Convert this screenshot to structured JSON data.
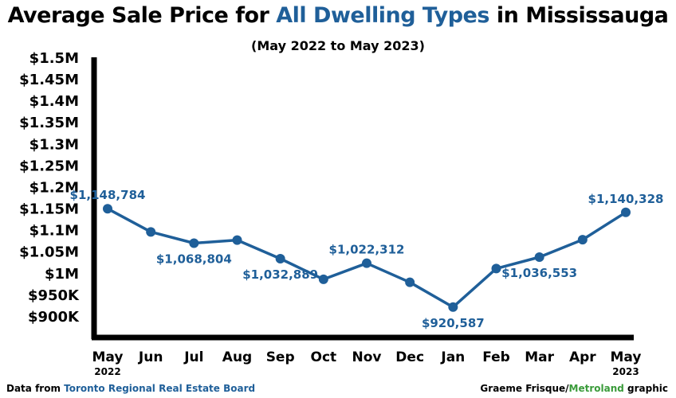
{
  "title": {
    "prefix": "Average Sale Price for ",
    "highlight": "All Dwelling Types",
    "suffix": " in Mississauga",
    "highlight_color": "#1f5f99"
  },
  "subtitle": "(May 2022 to May 2023)",
  "footer": {
    "source_prefix": "Data from ",
    "source_name": "Toronto Regional Real Estate Board",
    "credit_name": "Graeme Frisque/",
    "credit_brand": "Metroland",
    "credit_suffix": " graphic",
    "brand_color": "#3a9b3a"
  },
  "chart_data": {
    "type": "line",
    "title": "Average Sale Price for All Dwelling Types in Mississauga",
    "subtitle": "(May 2022 to May 2023)",
    "categories": [
      "May",
      "Jun",
      "Jul",
      "Aug",
      "Sep",
      "Oct",
      "Nov",
      "Dec",
      "Jan",
      "Feb",
      "Mar",
      "Apr",
      "May"
    ],
    "category_years": [
      "2022",
      "",
      "",
      "",
      "",
      "",
      "",
      "",
      "",
      "",
      "",
      "",
      "2023"
    ],
    "series": [
      {
        "name": "Average Sale Price",
        "color": "#1f5f99",
        "values": [
          1148784,
          1095000,
          1068804,
          1076000,
          1032889,
          985000,
          1022312,
          978000,
          920587,
          1010000,
          1036553,
          1077000,
          1140328
        ]
      }
    ],
    "data_labels": [
      {
        "index": 0,
        "text": "$1,148,784",
        "position": "above"
      },
      {
        "index": 2,
        "text": "$1,068,804",
        "position": "below"
      },
      {
        "index": 4,
        "text": "$1,032,889",
        "position": "below"
      },
      {
        "index": 6,
        "text": "$1,022,312",
        "position": "above"
      },
      {
        "index": 8,
        "text": "$920,587",
        "position": "below"
      },
      {
        "index": 10,
        "text": "$1,036,553",
        "position": "below"
      },
      {
        "index": 12,
        "text": "$1,140,328",
        "position": "above"
      }
    ],
    "y_ticks": [
      {
        "value": 900000,
        "label": "$900K"
      },
      {
        "value": 950000,
        "label": "$950K"
      },
      {
        "value": 1000000,
        "label": "$1M"
      },
      {
        "value": 1050000,
        "label": "$1.05M"
      },
      {
        "value": 1100000,
        "label": "$1.1M"
      },
      {
        "value": 1150000,
        "label": "$1.15M"
      },
      {
        "value": 1200000,
        "label": "$1.2M"
      },
      {
        "value": 1250000,
        "label": "$1.25M"
      },
      {
        "value": 1300000,
        "label": "$1.3M"
      },
      {
        "value": 1350000,
        "label": "$1.35M"
      },
      {
        "value": 1400000,
        "label": "$1.4M"
      },
      {
        "value": 1450000,
        "label": "$1.45M"
      },
      {
        "value": 1500000,
        "label": "$1.5M"
      }
    ],
    "ylim": [
      850000,
      1500000
    ],
    "xlabel": "",
    "ylabel": "",
    "grid": false,
    "legend": "none"
  }
}
